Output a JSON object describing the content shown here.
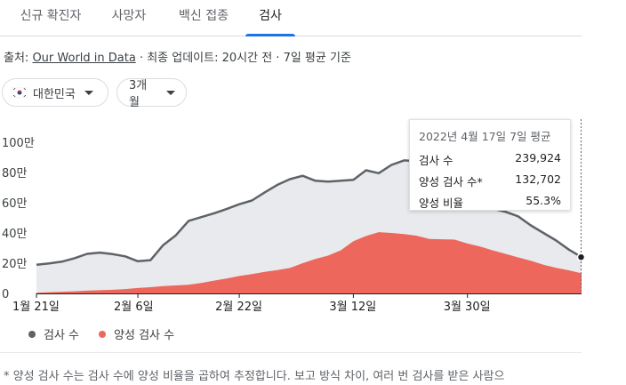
{
  "tabs": [
    {
      "label": "신규 확진자"
    },
    {
      "label": "사망자"
    },
    {
      "label": "백신 접종"
    },
    {
      "label": "검사"
    }
  ],
  "source": {
    "prefix": "출처:",
    "link": "Our World in Data",
    "rest": " · 최종 업데이트: 20시간 전 · 7일 평균 기준"
  },
  "filters": {
    "country": "대한민국",
    "range": "3개월"
  },
  "colors": {
    "tests_line": "#5f6368",
    "tests_area": "#e8eaed",
    "positive": "#ee675c",
    "accent": "#1a73e8"
  },
  "chart_data": {
    "type": "area",
    "x": [
      "2022-01-21",
      "2022-01-23",
      "2022-01-25",
      "2022-01-27",
      "2022-01-29",
      "2022-01-31",
      "2022-02-02",
      "2022-02-04",
      "2022-02-06",
      "2022-02-08",
      "2022-02-10",
      "2022-02-12",
      "2022-02-14",
      "2022-02-16",
      "2022-02-18",
      "2022-02-20",
      "2022-02-22",
      "2022-02-24",
      "2022-02-26",
      "2022-02-28",
      "2022-03-02",
      "2022-03-04",
      "2022-03-06",
      "2022-03-08",
      "2022-03-10",
      "2022-03-12",
      "2022-03-14",
      "2022-03-16",
      "2022-03-18",
      "2022-03-20",
      "2022-03-22",
      "2022-03-24",
      "2022-03-26",
      "2022-03-28",
      "2022-03-30",
      "2022-04-01",
      "2022-04-03",
      "2022-04-05",
      "2022-04-07",
      "2022-04-09",
      "2022-04-11",
      "2022-04-13",
      "2022-04-15",
      "2022-04-17"
    ],
    "series": [
      {
        "name": "검사 수",
        "values": [
          190000,
          199000,
          210000,
          233000,
          262000,
          270000,
          260000,
          245000,
          213000,
          220000,
          320000,
          385000,
          480000,
          505000,
          530000,
          558000,
          590000,
          615000,
          668000,
          718000,
          756000,
          778000,
          745000,
          740000,
          745000,
          752000,
          815000,
          795000,
          850000,
          880000,
          875000,
          830000,
          795000,
          720000,
          640000,
          590000,
          560000,
          540000,
          510000,
          450000,
          400000,
          350000,
          290000,
          240000
        ]
      },
      {
        "name": "양성 검사 수",
        "values": [
          5000,
          8000,
          11000,
          14000,
          18000,
          21000,
          24000,
          29000,
          36000,
          41000,
          48000,
          53000,
          57000,
          69000,
          85000,
          98000,
          115000,
          128000,
          143000,
          155000,
          168000,
          200000,
          228000,
          250000,
          285000,
          345000,
          380000,
          405000,
          400000,
          393000,
          382000,
          360000,
          358000,
          356000,
          330000,
          310000,
          285000,
          262000,
          238000,
          216000,
          190000,
          169000,
          153000,
          133000
        ]
      }
    ],
    "x_tick_labels": [
      "1월 21일",
      "2월 6일",
      "2월 22일",
      "3월 12일",
      "3월 30일"
    ],
    "x_tick_dates": [
      "2022-01-21",
      "2022-02-06",
      "2022-02-22",
      "2022-03-12",
      "2022-03-30"
    ],
    "y_tick_labels": [
      "0",
      "20만",
      "40만",
      "60만",
      "80만",
      "100만"
    ],
    "y_tick_values": [
      0,
      200000,
      400000,
      600000,
      800000,
      1000000
    ],
    "ylim": [
      0,
      1000000
    ],
    "grid": false,
    "legend": "bottom-left"
  },
  "tooltip": {
    "title": "2022년 4월 17일 7일 평균",
    "rows": [
      {
        "label": "검사 수",
        "value": "239,924"
      },
      {
        "label": "양성 검사 수*",
        "value": "132,702"
      },
      {
        "label": "양성 비율",
        "value": "55.3%"
      }
    ]
  },
  "legend": {
    "tests": "검사 수",
    "positive": "양성 검사 수"
  },
  "footnote": "* 양성 검사 수는 검사 수에 양성 비율을 곱하여 추정합니다. 보고 방식 차이, 여러 번 검사를 받은 사람으"
}
